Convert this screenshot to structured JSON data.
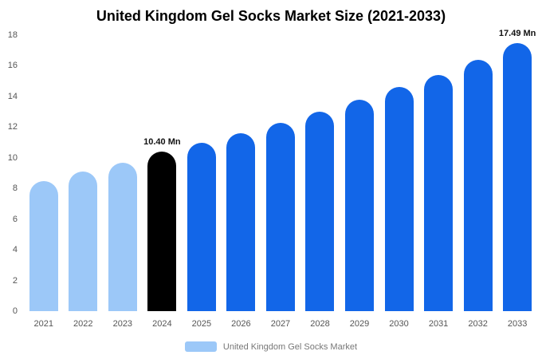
{
  "chart_data": {
    "type": "bar",
    "title": "United Kingdom Gel Socks Market Size (2021-2033)",
    "categories": [
      "2021",
      "2022",
      "2023",
      "2024",
      "2025",
      "2026",
      "2027",
      "2028",
      "2029",
      "2030",
      "2031",
      "2032",
      "2033"
    ],
    "values": [
      8.5,
      9.1,
      9.7,
      10.4,
      11.0,
      11.6,
      12.3,
      13.0,
      13.8,
      14.6,
      15.4,
      16.4,
      17.49
    ],
    "bar_colors": [
      "#9CC8F8",
      "#9CC8F8",
      "#9CC8F8",
      "#000000",
      "#1266E8",
      "#1266E8",
      "#1266E8",
      "#1266E8",
      "#1266E8",
      "#1266E8",
      "#1266E8",
      "#1266E8",
      "#1266E8"
    ],
    "ylim": [
      0,
      18
    ],
    "ytick_step": 2,
    "grid": false,
    "annotations": [
      {
        "category": "2024",
        "text": "10.40 Mn"
      },
      {
        "category": "2033",
        "text": "17.49 Mn"
      }
    ],
    "legend": {
      "label": "United Kingdom Gel Socks Market",
      "swatch_color": "#9CC8F8",
      "position": "bottom"
    }
  }
}
